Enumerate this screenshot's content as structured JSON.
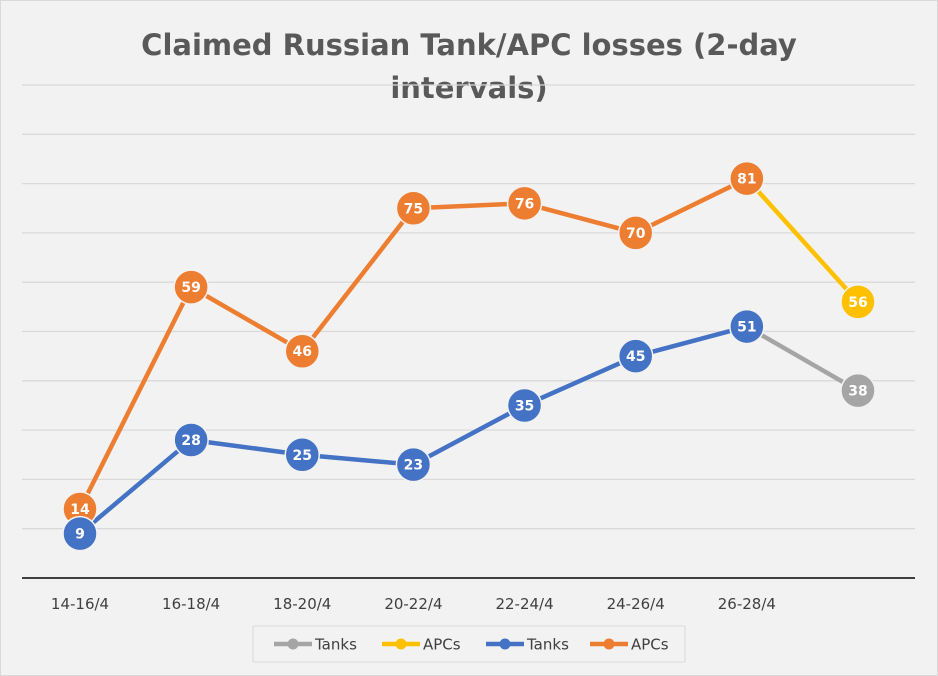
{
  "chart_data": {
    "type": "line",
    "title": [
      "Claimed Russian Tank/APC losses (2-day",
      "intervals)"
    ],
    "categories": [
      "14-16/4",
      "16-18/4",
      "18-20/4",
      "20-22/4",
      "22-24/4",
      "24-26/4",
      "26-28/4",
      ""
    ],
    "ylim": [
      0,
      100
    ],
    "grid": true,
    "legend_placement": "bottom",
    "series": [
      {
        "name": "Tanks",
        "color": "#a5a5a5",
        "values": [
          null,
          null,
          null,
          null,
          null,
          null,
          51,
          38
        ]
      },
      {
        "name": "APCs",
        "color": "#ffc000",
        "values": [
          null,
          null,
          null,
          null,
          null,
          null,
          81,
          56
        ]
      },
      {
        "name": "Tanks",
        "color": "#4472c4",
        "values": [
          9,
          28,
          25,
          23,
          35,
          45,
          51,
          null
        ]
      },
      {
        "name": "APCs",
        "color": "#ed7d31",
        "values": [
          14,
          59,
          46,
          75,
          76,
          70,
          81,
          null
        ]
      }
    ]
  }
}
